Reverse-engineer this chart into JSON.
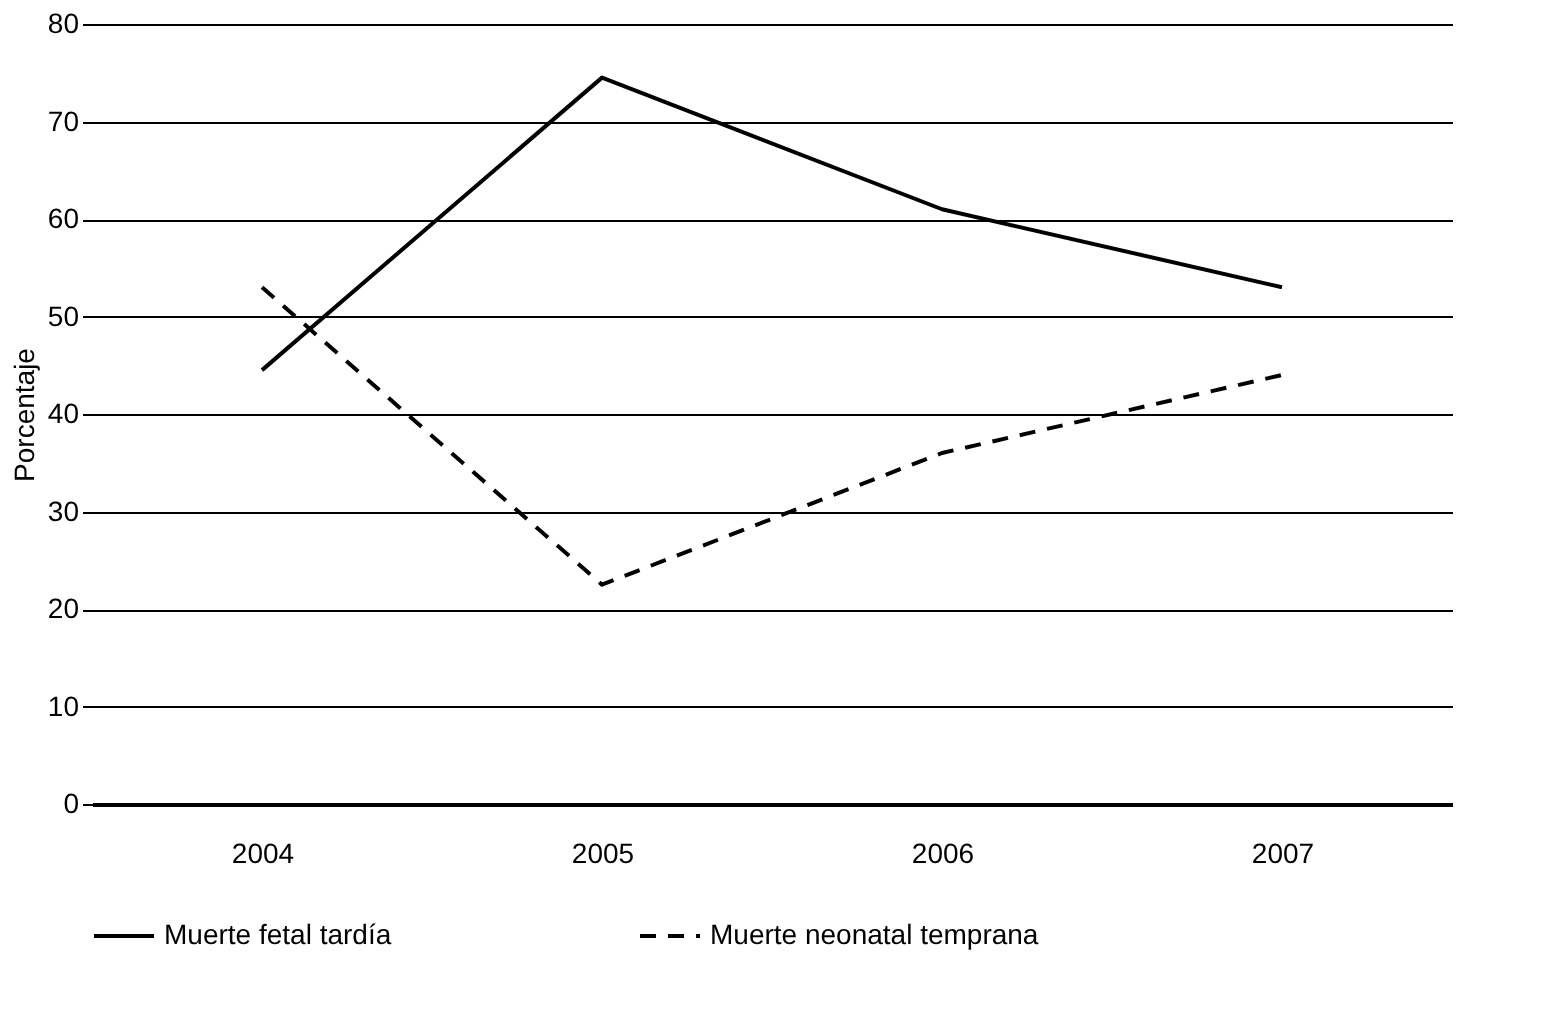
{
  "chart_data": {
    "type": "line",
    "ylabel": "Porcentaje",
    "categories": [
      "2004",
      "2005",
      "2006",
      "2007"
    ],
    "series": [
      {
        "name": "Muerte fetal tardía",
        "color": "#000000",
        "line_style": "solid",
        "values": [
          44.5,
          74.5,
          61,
          53
        ]
      },
      {
        "name": "Muerte neonatal temprana",
        "color": "#000000",
        "line_style": "dashed",
        "values": [
          53,
          22.5,
          36,
          44
        ]
      }
    ],
    "ylim": [
      0,
      80
    ],
    "yticks": [
      0,
      10,
      20,
      30,
      40,
      50,
      60,
      70,
      80
    ],
    "grid": "y",
    "legend": "bottom",
    "marker": "none"
  }
}
